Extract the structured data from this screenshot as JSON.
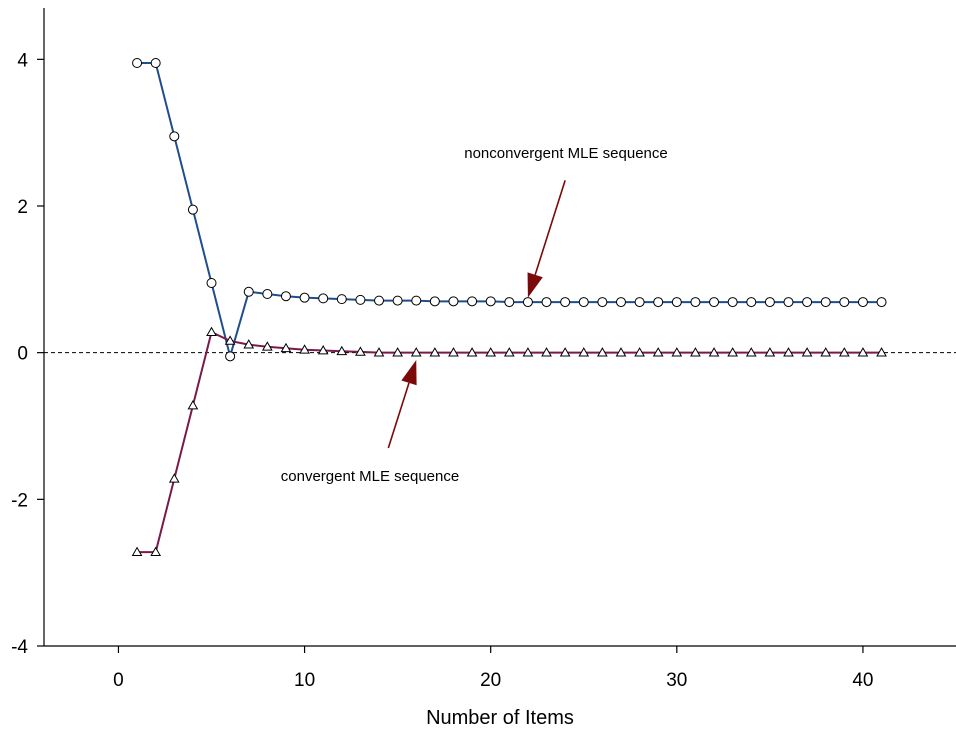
{
  "chart_data": {
    "type": "line",
    "title": "",
    "xlabel": "Number of Items",
    "ylabel": "",
    "xlim": [
      -4,
      45
    ],
    "ylim": [
      -4,
      4.7
    ],
    "xticks": [
      0,
      10,
      20,
      30,
      40
    ],
    "yticks": [
      -4,
      -2,
      0,
      2,
      4
    ],
    "xtick_labels": [
      "0",
      "10",
      "20",
      "30",
      "40"
    ],
    "ytick_labels": [
      "-4",
      "-2",
      "0",
      "2",
      "4"
    ],
    "reference_line_y": 0,
    "grid": false,
    "x": [
      1,
      2,
      3,
      4,
      5,
      6,
      7,
      8,
      9,
      10,
      11,
      12,
      13,
      14,
      15,
      16,
      17,
      18,
      19,
      20,
      21,
      22,
      23,
      24,
      25,
      26,
      27,
      28,
      29,
      30,
      31,
      32,
      33,
      34,
      35,
      36,
      37,
      38,
      39,
      40,
      41
    ],
    "series": [
      {
        "color": "#1f4e8c",
        "marker": "circle",
        "values": [
          3.95,
          3.95,
          2.95,
          1.95,
          0.95,
          -0.05,
          0.83,
          0.8,
          0.77,
          0.75,
          0.74,
          0.73,
          0.72,
          0.71,
          0.71,
          0.71,
          0.7,
          0.7,
          0.7,
          0.7,
          0.69,
          0.69,
          0.69,
          0.69,
          0.69,
          0.69,
          0.69,
          0.69,
          0.69,
          0.69,
          0.69,
          0.69,
          0.69,
          0.69,
          0.69,
          0.69,
          0.69,
          0.69,
          0.69,
          0.69,
          0.69
        ]
      },
      {
        "color": "#7a1a4a",
        "marker": "triangle",
        "values": [
          -2.72,
          -2.72,
          -1.72,
          -0.72,
          0.28,
          0.16,
          0.11,
          0.08,
          0.06,
          0.04,
          0.03,
          0.02,
          0.01,
          0.0,
          0.0,
          0.0,
          0.0,
          0.0,
          0.0,
          0.0,
          0.0,
          0.0,
          0.0,
          0.0,
          0.0,
          0.0,
          0.0,
          0.0,
          0.0,
          0.0,
          0.0,
          0.0,
          0.0,
          0.0,
          0.0,
          0.0,
          0.0,
          0.0,
          0.0,
          0.0,
          0.0
        ]
      }
    ],
    "annotations": [
      {
        "text": "nonconvergent MLE sequence",
        "arrow_tip": [
          22,
          0.75
        ],
        "arrow_tail": [
          24,
          2.35
        ]
      },
      {
        "text": "convergent MLE sequence",
        "arrow_tip": [
          16,
          -0.1
        ],
        "arrow_tail": [
          14.5,
          -1.3
        ]
      }
    ],
    "arrow_color": "#7a0a0a"
  }
}
